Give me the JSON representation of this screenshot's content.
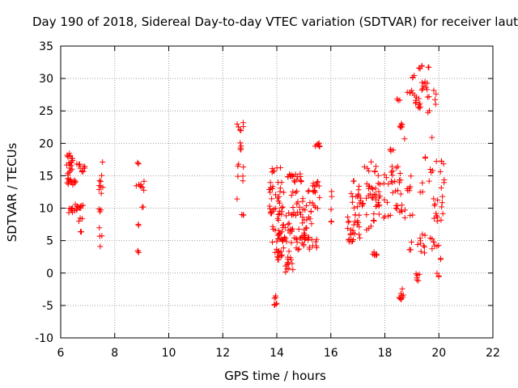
{
  "chart_data": {
    "type": "scatter",
    "title": "Day 190 of 2018, Sidereal Day-to-day VTEC variation (SDTVAR) for receiver laut",
    "xlabel": "GPS time / hours",
    "ylabel": "SDTVAR / TECUs",
    "xlim": [
      6,
      22
    ],
    "ylim": [
      -10,
      35
    ],
    "xticks": [
      6,
      8,
      10,
      12,
      14,
      16,
      18,
      20,
      22
    ],
    "yticks": [
      -10,
      -5,
      0,
      5,
      10,
      15,
      20,
      25,
      30,
      35
    ],
    "grid": true,
    "marker": "+",
    "colors": {
      "series": "#ff0000",
      "grid": "#a0a0a0",
      "axis": "#000000"
    },
    "clusters": [
      {
        "x0": 6.2,
        "x1": 6.45,
        "y0": 15.0,
        "y1": 18.5,
        "n": 20
      },
      {
        "x0": 6.2,
        "x1": 6.6,
        "y0": 13.5,
        "y1": 14.6,
        "n": 14
      },
      {
        "x0": 6.3,
        "x1": 6.7,
        "y0": 9.3,
        "y1": 10.8,
        "n": 14
      },
      {
        "x0": 6.5,
        "x1": 6.9,
        "y0": 15.5,
        "y1": 17.0,
        "n": 10
      },
      {
        "x0": 6.6,
        "x1": 6.9,
        "y0": 10.0,
        "y1": 10.6,
        "n": 6
      },
      {
        "x0": 6.6,
        "x1": 6.8,
        "y0": 7.8,
        "y1": 8.5,
        "n": 3
      },
      {
        "x0": 6.7,
        "x1": 6.8,
        "y0": 6.2,
        "y1": 6.6,
        "n": 3
      },
      {
        "x0": 7.4,
        "x1": 7.6,
        "y0": 12.2,
        "y1": 15.2,
        "n": 8
      },
      {
        "x0": 7.4,
        "x1": 7.6,
        "y0": 9.3,
        "y1": 10.2,
        "n": 3
      },
      {
        "x0": 7.4,
        "x1": 7.6,
        "y0": 4.0,
        "y1": 7.5,
        "n": 4
      },
      {
        "x0": 7.5,
        "x1": 7.6,
        "y0": 16.8,
        "y1": 17.2,
        "n": 1
      },
      {
        "x0": 8.8,
        "x1": 8.9,
        "y0": 16.8,
        "y1": 17.2,
        "n": 3
      },
      {
        "x0": 8.75,
        "x1": 9.1,
        "y0": 12.7,
        "y1": 14.7,
        "n": 8
      },
      {
        "x0": 8.9,
        "x1": 9.1,
        "y0": 10.0,
        "y1": 10.6,
        "n": 2
      },
      {
        "x0": 8.8,
        "x1": 8.9,
        "y0": 7.2,
        "y1": 7.6,
        "n": 2
      },
      {
        "x0": 8.8,
        "x1": 8.9,
        "y0": 3.0,
        "y1": 3.6,
        "n": 3
      },
      {
        "x0": 12.5,
        "x1": 12.8,
        "y0": 21.8,
        "y1": 23.2,
        "n": 6
      },
      {
        "x0": 12.6,
        "x1": 12.7,
        "y0": 18.8,
        "y1": 20.2,
        "n": 5
      },
      {
        "x0": 12.55,
        "x1": 12.8,
        "y0": 14.2,
        "y1": 16.8,
        "n": 6
      },
      {
        "x0": 12.5,
        "x1": 12.6,
        "y0": 11.2,
        "y1": 11.7,
        "n": 1
      },
      {
        "x0": 12.7,
        "x1": 12.8,
        "y0": 8.9,
        "y1": 9.4,
        "n": 3
      },
      {
        "x0": 13.7,
        "x1": 14.3,
        "y0": 9.0,
        "y1": 14.5,
        "n": 28
      },
      {
        "x0": 13.8,
        "x1": 14.2,
        "y0": 15.5,
        "y1": 16.3,
        "n": 6
      },
      {
        "x0": 13.8,
        "x1": 15.3,
        "y0": 4.5,
        "y1": 9.5,
        "n": 70
      },
      {
        "x0": 13.9,
        "x1": 14.3,
        "y0": 1.5,
        "y1": 4.0,
        "n": 14
      },
      {
        "x0": 13.9,
        "x1": 14.0,
        "y0": -5.0,
        "y1": -3.2,
        "n": 8
      },
      {
        "x0": 14.3,
        "x1": 14.6,
        "y0": 0.0,
        "y1": 3.5,
        "n": 14
      },
      {
        "x0": 14.4,
        "x1": 15.0,
        "y0": 14.0,
        "y1": 15.3,
        "n": 18
      },
      {
        "x0": 14.5,
        "x1": 15.6,
        "y0": 9.5,
        "y1": 12.8,
        "n": 22
      },
      {
        "x0": 14.5,
        "x1": 15.5,
        "y0": 3.5,
        "y1": 6.0,
        "n": 24
      },
      {
        "x0": 15.3,
        "x1": 15.6,
        "y0": 11.2,
        "y1": 14.2,
        "n": 12
      },
      {
        "x0": 15.4,
        "x1": 15.6,
        "y0": 19.5,
        "y1": 20.3,
        "n": 8
      },
      {
        "x0": 16.0,
        "x1": 16.1,
        "y0": 7.8,
        "y1": 12.7,
        "n": 5
      },
      {
        "x0": 16.6,
        "x1": 17.1,
        "y0": 4.8,
        "y1": 9.0,
        "n": 28
      },
      {
        "x0": 16.7,
        "x1": 17.2,
        "y0": 10.0,
        "y1": 14.2,
        "n": 20
      },
      {
        "x0": 17.1,
        "x1": 17.5,
        "y0": 15.3,
        "y1": 17.6,
        "n": 4
      },
      {
        "x0": 17.3,
        "x1": 17.8,
        "y0": 11.5,
        "y1": 14.2,
        "n": 16
      },
      {
        "x0": 17.3,
        "x1": 17.6,
        "y0": 6.5,
        "y1": 9.2,
        "n": 8
      },
      {
        "x0": 17.5,
        "x1": 17.7,
        "y0": 2.5,
        "y1": 3.5,
        "n": 6
      },
      {
        "x0": 17.6,
        "x1": 18.3,
        "y0": 8.5,
        "y1": 16.5,
        "n": 28
      },
      {
        "x0": 18.1,
        "x1": 18.35,
        "y0": 18.5,
        "y1": 19.2,
        "n": 5
      },
      {
        "x0": 18.2,
        "x1": 18.6,
        "y0": 12.0,
        "y1": 17.0,
        "n": 14
      },
      {
        "x0": 18.3,
        "x1": 18.8,
        "y0": 8.5,
        "y1": 10.5,
        "n": 10
      },
      {
        "x0": 18.45,
        "x1": 18.6,
        "y0": 26.4,
        "y1": 26.9,
        "n": 3
      },
      {
        "x0": 18.55,
        "x1": 18.75,
        "y0": 22.4,
        "y1": 23.1,
        "n": 6
      },
      {
        "x0": 18.5,
        "x1": 18.7,
        "y0": -4.2,
        "y1": -1.0,
        "n": 10
      },
      {
        "x0": 18.7,
        "x1": 18.8,
        "y0": 20.5,
        "y1": 21.0,
        "n": 1
      },
      {
        "x0": 18.8,
        "x1": 19.1,
        "y0": 27.2,
        "y1": 28.2,
        "n": 6
      },
      {
        "x0": 18.8,
        "x1": 19.0,
        "y0": 12.5,
        "y1": 16.5,
        "n": 6
      },
      {
        "x0": 18.9,
        "x1": 19.0,
        "y0": 3.5,
        "y1": 5.0,
        "n": 4
      },
      {
        "x0": 18.9,
        "x1": 19.1,
        "y0": 8.0,
        "y1": 9.0,
        "n": 2
      },
      {
        "x0": 19.0,
        "x1": 19.1,
        "y0": 30.0,
        "y1": 30.7,
        "n": 3
      },
      {
        "x0": 19.1,
        "x1": 19.4,
        "y0": 25.4,
        "y1": 27.2,
        "n": 10
      },
      {
        "x0": 19.2,
        "x1": 19.4,
        "y0": 31.5,
        "y1": 32.1,
        "n": 4
      },
      {
        "x0": 19.3,
        "x1": 19.6,
        "y0": 28.2,
        "y1": 29.6,
        "n": 8
      },
      {
        "x0": 19.0,
        "x1": 19.3,
        "y0": -1.2,
        "y1": 0.0,
        "n": 6
      },
      {
        "x0": 19.2,
        "x1": 19.5,
        "y0": 3.0,
        "y1": 6.0,
        "n": 10
      },
      {
        "x0": 19.3,
        "x1": 19.5,
        "y0": 12.0,
        "y1": 14.5,
        "n": 3
      },
      {
        "x0": 19.4,
        "x1": 19.5,
        "y0": 17.5,
        "y1": 17.9,
        "n": 2
      },
      {
        "x0": 19.5,
        "x1": 19.7,
        "y0": 21.5,
        "y1": 29.0,
        "n": 5
      },
      {
        "x0": 19.6,
        "x1": 19.7,
        "y0": 31.5,
        "y1": 31.9,
        "n": 2
      },
      {
        "x0": 19.6,
        "x1": 19.8,
        "y0": 14.0,
        "y1": 16.0,
        "n": 4
      },
      {
        "x0": 19.6,
        "x1": 20.0,
        "y0": 3.5,
        "y1": 5.5,
        "n": 8
      },
      {
        "x0": 19.7,
        "x1": 19.8,
        "y0": 20.5,
        "y1": 21.0,
        "n": 1
      },
      {
        "x0": 19.8,
        "x1": 19.9,
        "y0": 26.0,
        "y1": 29.0,
        "n": 4
      },
      {
        "x0": 19.8,
        "x1": 20.2,
        "y0": 8.0,
        "y1": 12.0,
        "n": 14
      },
      {
        "x0": 19.9,
        "x1": 20.2,
        "y0": 13.0,
        "y1": 17.3,
        "n": 8
      },
      {
        "x0": 19.9,
        "x1": 20.0,
        "y0": -0.6,
        "y1": 0.0,
        "n": 3
      },
      {
        "x0": 20.0,
        "x1": 20.1,
        "y0": 2.0,
        "y1": 2.5,
        "n": 2
      }
    ]
  }
}
